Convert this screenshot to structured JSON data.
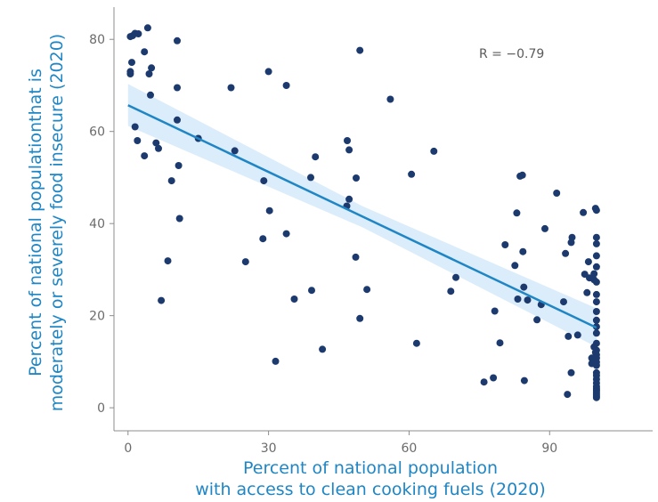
{
  "chart_data": {
    "type": "scatter",
    "title": "",
    "xlabel": [
      "Percent of national population",
      "with access to clean cooking fuels (2020)"
    ],
    "ylabel": [
      "Percent of national populationthat is",
      "moderately or severely food insecure (2020)"
    ],
    "xlim": [
      -3,
      112
    ],
    "ylim": [
      -5,
      87
    ],
    "xticks": [
      0,
      30,
      60,
      90
    ],
    "yticks": [
      0,
      20,
      40,
      60,
      80
    ],
    "grid": false,
    "annotation": "R = −0.79",
    "colors": {
      "points": "#1c3a6e",
      "trend": "#1f86c5",
      "band": "#cfe6f8",
      "axis_title": "#1f86c5"
    },
    "trend": {
      "x": [
        0,
        100
      ],
      "y": [
        65.7,
        17.4
      ]
    },
    "confidence_band": {
      "x": [
        0,
        50,
        100
      ],
      "lower": [
        61.2,
        39.2,
        13.2
      ],
      "upper": [
        70.3,
        43.8,
        21.6
      ]
    },
    "points": [
      [
        0.5,
        80.6
      ],
      [
        1.0,
        80.8
      ],
      [
        1.5,
        81.3
      ],
      [
        2.2,
        81.2
      ],
      [
        4.2,
        82.5
      ],
      [
        10.5,
        79.7
      ],
      [
        49.5,
        77.6
      ],
      [
        30.0,
        73.0
      ],
      [
        0.8,
        75.0
      ],
      [
        3.5,
        77.3
      ],
      [
        5.0,
        73.8
      ],
      [
        0.5,
        73.0
      ],
      [
        0.5,
        72.5
      ],
      [
        4.5,
        72.5
      ],
      [
        33.8,
        70.0
      ],
      [
        22.0,
        69.5
      ],
      [
        10.5,
        69.5
      ],
      [
        4.8,
        67.9
      ],
      [
        56.0,
        67.0
      ],
      [
        10.5,
        62.5
      ],
      [
        1.5,
        61.0
      ],
      [
        15.0,
        58.5
      ],
      [
        2.0,
        58.0
      ],
      [
        46.8,
        58.0
      ],
      [
        6.0,
        57.5
      ],
      [
        6.5,
        56.3
      ],
      [
        22.8,
        55.8
      ],
      [
        65.3,
        55.7
      ],
      [
        47.2,
        56.0
      ],
      [
        3.5,
        54.7
      ],
      [
        40.0,
        54.5
      ],
      [
        10.8,
        52.6
      ],
      [
        60.5,
        50.7
      ],
      [
        84.2,
        50.5
      ],
      [
        83.7,
        50.3
      ],
      [
        39.0,
        50.0
      ],
      [
        48.7,
        49.9
      ],
      [
        29.0,
        49.3
      ],
      [
        9.3,
        49.3
      ],
      [
        91.5,
        46.6
      ],
      [
        47.2,
        45.3
      ],
      [
        46.7,
        43.8
      ],
      [
        99.8,
        43.3
      ],
      [
        100.0,
        42.9
      ],
      [
        30.2,
        42.8
      ],
      [
        97.2,
        42.4
      ],
      [
        83.0,
        42.3
      ],
      [
        11.0,
        41.1
      ],
      [
        89.0,
        38.9
      ],
      [
        33.8,
        37.8
      ],
      [
        100.0,
        37.0
      ],
      [
        94.8,
        37.0
      ],
      [
        28.8,
        36.7
      ],
      [
        94.6,
        35.9
      ],
      [
        80.5,
        35.4
      ],
      [
        100.0,
        35.6
      ],
      [
        84.3,
        33.9
      ],
      [
        93.4,
        33.5
      ],
      [
        100.0,
        33.0
      ],
      [
        48.6,
        32.7
      ],
      [
        8.5,
        31.9
      ],
      [
        25.1,
        31.7
      ],
      [
        98.3,
        31.7
      ],
      [
        82.6,
        30.9
      ],
      [
        100.0,
        30.6
      ],
      [
        99.5,
        29.1
      ],
      [
        97.5,
        29.0
      ],
      [
        98.5,
        28.2
      ],
      [
        70.0,
        28.3
      ],
      [
        100.0,
        27.3
      ],
      [
        99.5,
        27.8
      ],
      [
        84.5,
        26.2
      ],
      [
        51.0,
        25.7
      ],
      [
        68.9,
        25.3
      ],
      [
        39.2,
        25.5
      ],
      [
        98.0,
        25.0
      ],
      [
        100.0,
        24.6
      ],
      [
        7.1,
        23.3
      ],
      [
        35.5,
        23.6
      ],
      [
        83.2,
        23.6
      ],
      [
        85.3,
        23.4
      ],
      [
        93.0,
        23.0
      ],
      [
        100.0,
        23.0
      ],
      [
        88.2,
        22.4
      ],
      [
        78.3,
        21.0
      ],
      [
        100.0,
        20.9
      ],
      [
        87.3,
        19.1
      ],
      [
        49.5,
        19.4
      ],
      [
        100.0,
        19.0
      ],
      [
        100.0,
        17.6
      ],
      [
        100.0,
        16.2
      ],
      [
        96.0,
        15.8
      ],
      [
        94.0,
        15.5
      ],
      [
        79.4,
        14.1
      ],
      [
        61.6,
        14.0
      ],
      [
        100.0,
        14.0
      ],
      [
        99.5,
        13.2
      ],
      [
        41.5,
        12.7
      ],
      [
        100.0,
        12.5
      ],
      [
        99.8,
        12.0
      ],
      [
        100.0,
        11.5
      ],
      [
        99.0,
        10.8
      ],
      [
        100.0,
        10.8
      ],
      [
        99.0,
        9.6
      ],
      [
        31.5,
        10.1
      ],
      [
        100.0,
        9.9
      ],
      [
        100.0,
        9.2
      ],
      [
        94.6,
        7.6
      ],
      [
        100.0,
        7.6
      ],
      [
        100.0,
        7.0
      ],
      [
        78.0,
        6.5
      ],
      [
        84.6,
        5.9
      ],
      [
        76.0,
        5.6
      ],
      [
        100.0,
        6.2
      ],
      [
        100.0,
        5.4
      ],
      [
        100.0,
        4.6
      ],
      [
        100.0,
        3.9
      ],
      [
        100.0,
        3.2
      ],
      [
        93.8,
        2.9
      ],
      [
        100.0,
        2.5
      ],
      [
        100.0,
        2.2
      ],
      [
        100.0,
        4.2
      ],
      [
        100.0,
        3.6
      ],
      [
        100.0,
        2.8
      ]
    ]
  }
}
